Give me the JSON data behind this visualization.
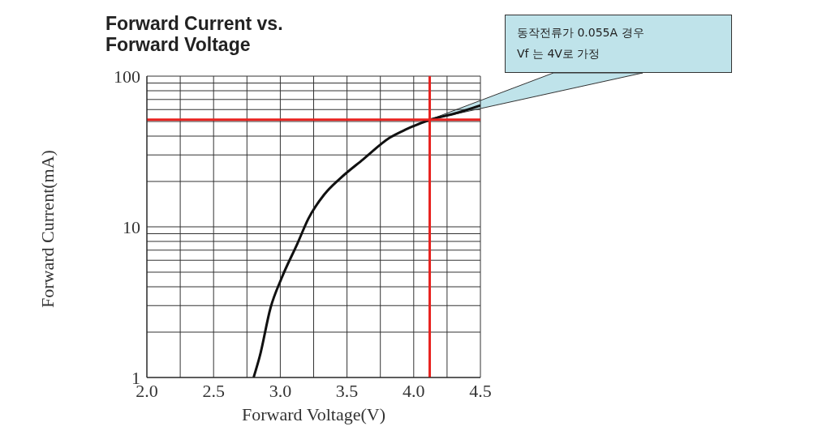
{
  "chart_data": {
    "type": "line",
    "title": "Forward Current vs.\nForward Voltage",
    "xlabel": "Forward Voltage(V)",
    "ylabel": "Forward Current(mA)",
    "series": [
      {
        "color": "#111111",
        "x": [
          2.8,
          2.846,
          2.927,
          3.01,
          3.13,
          3.21,
          3.33,
          3.45,
          3.62,
          3.82,
          3.94,
          4.125,
          4.31,
          4.5
        ],
        "values": [
          1,
          1.38,
          2.9,
          4.57,
          7.8,
          11.3,
          16.4,
          21,
          28,
          39,
          44.2,
          51.4,
          56.6,
          64
        ]
      }
    ],
    "xlim": [
      2,
      4.5
    ],
    "ylim": [
      1,
      100
    ],
    "log": "y",
    "grid": true,
    "marker": "none",
    "line_style": "solid",
    "xticks": [
      {
        "value": 2,
        "label": "2.0"
      },
      {
        "value": 2.25,
        "label": null
      },
      {
        "value": 2.5,
        "label": "2.5"
      },
      {
        "value": 2.75,
        "label": null
      },
      {
        "value": 3,
        "label": "3.0"
      },
      {
        "value": 3.25,
        "label": null
      },
      {
        "value": 3.5,
        "label": "3.5"
      },
      {
        "value": 3.75,
        "label": null
      },
      {
        "value": 4,
        "label": "4.0"
      },
      {
        "value": 4.25,
        "label": null
      },
      {
        "value": 4.5,
        "label": "4.5"
      }
    ],
    "yticks": [
      1,
      {
        "value": 2,
        "label": null
      },
      {
        "value": 3,
        "label": null
      },
      {
        "value": 4,
        "label": null
      },
      {
        "value": 5,
        "label": null
      },
      {
        "value": 6,
        "label": null
      },
      {
        "value": 7,
        "label": null
      },
      {
        "value": 8,
        "label": null
      },
      {
        "value": 9,
        "label": null
      },
      10,
      {
        "value": 20,
        "label": null
      },
      {
        "value": 30,
        "label": null
      },
      {
        "value": 40,
        "label": null
      },
      {
        "value": 50,
        "label": null
      },
      {
        "value": 60,
        "label": null
      },
      {
        "value": 70,
        "label": null
      },
      {
        "value": 80,
        "label": null
      },
      {
        "value": 90,
        "label": null
      },
      100
    ],
    "ref_lines": [
      {
        "axis": "y",
        "value": 51.4,
        "color": "#e8221f"
      },
      {
        "axis": "x",
        "value": 4.12,
        "color": "#e8221f"
      }
    ],
    "annotations": [
      {
        "text": "동작전류가 0.055A 경우\nVf 는 4V로 가정",
        "x": 4.12,
        "y": 51.4
      }
    ]
  }
}
